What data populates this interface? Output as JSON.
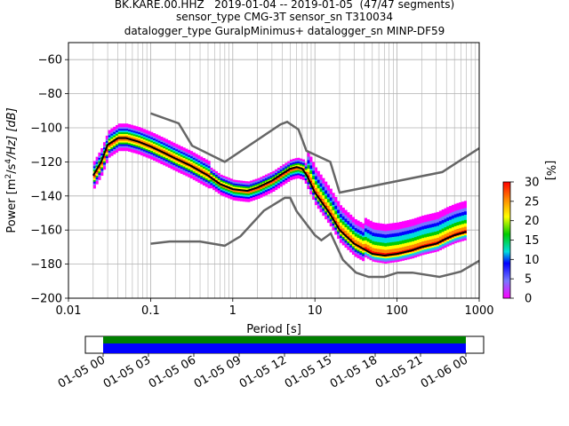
{
  "chart_data": {
    "type": "heatmap",
    "title_lines": [
      "BK.KARE.00.HHZ   2019-01-04 -- 2019-01-05  (47/47 segments)",
      "sensor_type CMG-3T sensor_sn T310034",
      "datalogger_type GuralpMinimus+ datalogger_sn MINP-DF59"
    ],
    "xlabel": "Period [s]",
    "ylabel_parts": {
      "a": "Power [m",
      "sup1": "2",
      "b": "/s",
      "sup2": "4",
      "c": "/Hz] [dB]"
    },
    "x_scale": "log",
    "xlim": [
      0.01,
      1000
    ],
    "ylim": [
      -200,
      -50
    ],
    "x_ticks": [
      {
        "value": 0.01,
        "label": "0.01"
      },
      {
        "value": 0.1,
        "label": "0.1"
      },
      {
        "value": 1,
        "label": "1"
      },
      {
        "value": 10,
        "label": "10"
      },
      {
        "value": 100,
        "label": "100"
      },
      {
        "value": 1000,
        "label": "1000"
      }
    ],
    "y_ticks": [
      -60,
      -80,
      -100,
      -120,
      -140,
      -160,
      -180,
      -200
    ],
    "grid": true,
    "colorbar": {
      "label": "[%]",
      "ticks": [
        0,
        5,
        10,
        15,
        20,
        25,
        30
      ],
      "range": [
        0,
        30
      ],
      "colors": [
        "#ff00ff",
        "#7777ff",
        "#0000ff",
        "#00dddd",
        "#00cc00",
        "#ffff00",
        "#ff8800",
        "#ff0000"
      ]
    },
    "mean_curve": [
      [
        0.02,
        -128
      ],
      [
        0.025,
        -120
      ],
      [
        0.03,
        -110
      ],
      [
        0.04,
        -106
      ],
      [
        0.05,
        -106
      ],
      [
        0.07,
        -108
      ],
      [
        0.1,
        -111
      ],
      [
        0.15,
        -115
      ],
      [
        0.2,
        -118
      ],
      [
        0.3,
        -122
      ],
      [
        0.5,
        -128
      ],
      [
        0.7,
        -133
      ],
      [
        1,
        -136
      ],
      [
        1.5,
        -137
      ],
      [
        2,
        -135
      ],
      [
        3,
        -131
      ],
      [
        4,
        -127
      ],
      [
        5,
        -124
      ],
      [
        6,
        -123
      ],
      [
        7,
        -124
      ],
      [
        8,
        -128
      ],
      [
        10,
        -138
      ],
      [
        15,
        -150
      ],
      [
        20,
        -160
      ],
      [
        30,
        -168
      ],
      [
        50,
        -174
      ],
      [
        70,
        -175
      ],
      [
        100,
        -174
      ],
      [
        150,
        -172
      ],
      [
        200,
        -170
      ],
      [
        300,
        -168
      ],
      [
        400,
        -165
      ],
      [
        500,
        -163
      ],
      [
        700,
        -161
      ]
    ],
    "nhnm": [
      [
        0.1,
        -91.5
      ],
      [
        0.22,
        -97.4
      ],
      [
        0.32,
        -110.5
      ],
      [
        0.8,
        -120
      ],
      [
        3.8,
        -98
      ],
      [
        4.6,
        -96.5
      ],
      [
        6.3,
        -101
      ],
      [
        7.9,
        -113.5
      ],
      [
        15.4,
        -120
      ],
      [
        20,
        -138
      ],
      [
        354.8,
        -126
      ],
      [
        1000,
        -112
      ]
    ],
    "nlnm": [
      [
        0.1,
        -168
      ],
      [
        0.17,
        -166.7
      ],
      [
        0.4,
        -166.7
      ],
      [
        0.8,
        -169.2
      ],
      [
        1.24,
        -163.7
      ],
      [
        2.4,
        -148.6
      ],
      [
        4.3,
        -141.1
      ],
      [
        5,
        -141.1
      ],
      [
        6,
        -149
      ],
      [
        10,
        -163
      ],
      [
        12,
        -166
      ],
      [
        15.6,
        -162
      ],
      [
        21.9,
        -177.5
      ],
      [
        31.6,
        -185
      ],
      [
        45,
        -187.5
      ],
      [
        70,
        -187.5
      ],
      [
        101,
        -185
      ],
      [
        154,
        -185
      ],
      [
        328,
        -187.5
      ],
      [
        600,
        -184.4
      ],
      [
        1000,
        -178
      ]
    ],
    "time_axis": {
      "labels": [
        "01-05 00",
        "01-05 03",
        "01-05 06",
        "01-05 09",
        "01-05 12",
        "01-05 15",
        "01-05 18",
        "01-05 21",
        "01-06 00"
      ],
      "coverage_colors": [
        "#008000",
        "#0000ff"
      ]
    }
  }
}
